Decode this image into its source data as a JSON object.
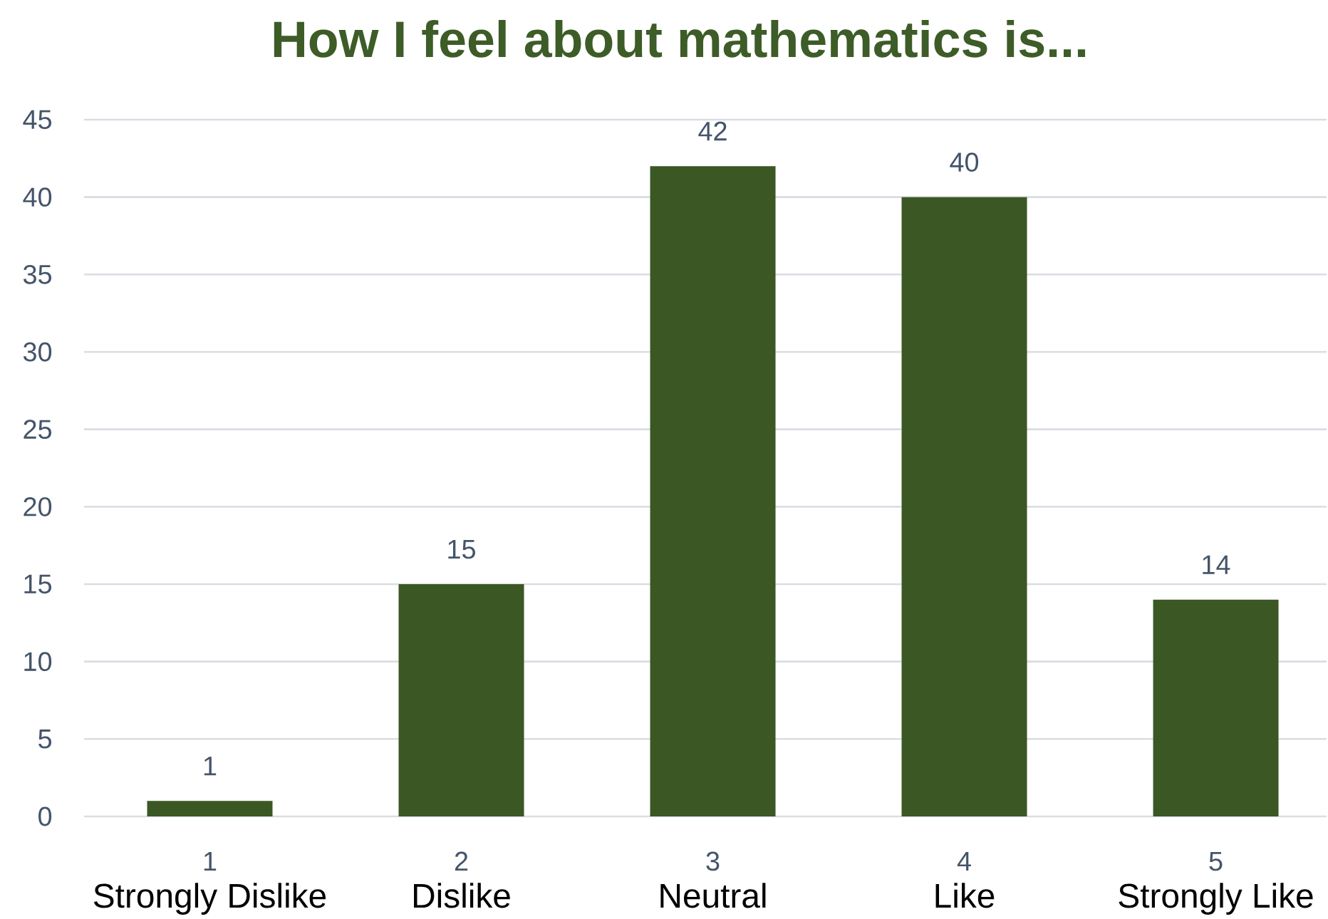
{
  "chart_data": {
    "type": "bar",
    "title": "How I feel about mathematics is...",
    "categories": [
      "1",
      "2",
      "3",
      "4",
      "5"
    ],
    "values": [
      1,
      15,
      42,
      40,
      14
    ],
    "color": "#3b5724",
    "ylim": [
      0,
      45
    ],
    "yticks": [
      0,
      5,
      10,
      15,
      20,
      25,
      30,
      35,
      40,
      45
    ],
    "grid": "y",
    "data_labels": true,
    "annotations": [
      "Strongly Dislike",
      "Dislike",
      "Neutral",
      "Like",
      "Strongly Like"
    ]
  }
}
